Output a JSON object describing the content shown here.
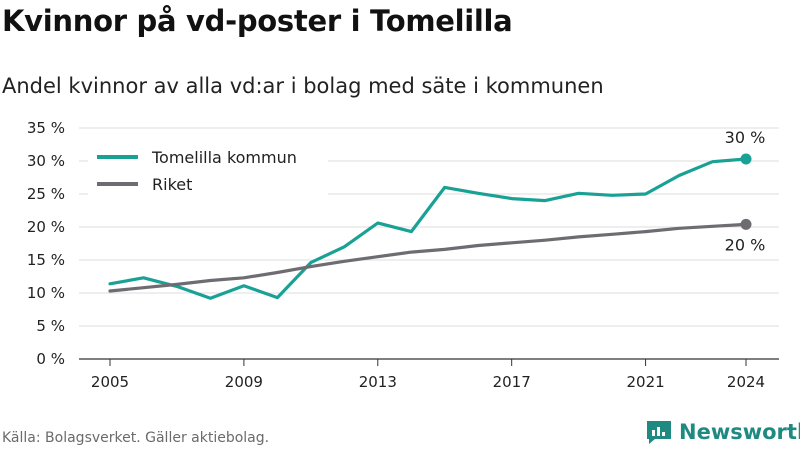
{
  "title": "Kvinnor på vd-poster i Tomelilla",
  "subtitle": "Andel kvinnor av alla vd:ar i bolag med säte i kommunen",
  "source": "Källa: Bolagsverket. Gäller aktiebolag.",
  "brand": {
    "name": "Newsworthy",
    "color": "#1f8a82",
    "icon": "bar-chart-logo-icon"
  },
  "chart_data": {
    "type": "line",
    "x": [
      2005,
      2006,
      2007,
      2008,
      2009,
      2010,
      2011,
      2012,
      2013,
      2014,
      2015,
      2016,
      2017,
      2018,
      2019,
      2020,
      2021,
      2022,
      2023,
      2024
    ],
    "series": [
      {
        "name": "Tomelilla kommun",
        "color": "#1aa196",
        "values": [
          11.4,
          12.3,
          11.0,
          9.2,
          11.1,
          9.3,
          14.6,
          17.0,
          20.6,
          19.3,
          26.0,
          25.1,
          24.3,
          24.0,
          25.1,
          24.8,
          25.0,
          27.8,
          29.9,
          30.3
        ],
        "end_label": "30 %"
      },
      {
        "name": "Riket",
        "color": "#6f6c71",
        "values": [
          10.3,
          10.8,
          11.3,
          11.9,
          12.3,
          13.1,
          14.0,
          14.8,
          15.5,
          16.2,
          16.6,
          17.2,
          17.6,
          18.0,
          18.5,
          18.9,
          19.3,
          19.8,
          20.1,
          20.4
        ],
        "end_label": "20 %"
      }
    ],
    "x_ticks": [
      2005,
      2009,
      2013,
      2017,
      2021,
      2024
    ],
    "x_tick_labels": [
      "2005",
      "2009",
      "2013",
      "2017",
      "2021",
      "2024"
    ],
    "y_ticks": [
      0,
      5,
      10,
      15,
      20,
      25,
      30,
      35
    ],
    "y_tick_labels": [
      "0 %",
      "5 %",
      "10 %",
      "15 %",
      "20 %",
      "25 %",
      "30 %",
      "35 %"
    ],
    "ylim": [
      0,
      35
    ],
    "xlim": [
      2005,
      2024
    ],
    "grid": true,
    "legend": "top-left",
    "xlabel": "",
    "ylabel": ""
  }
}
